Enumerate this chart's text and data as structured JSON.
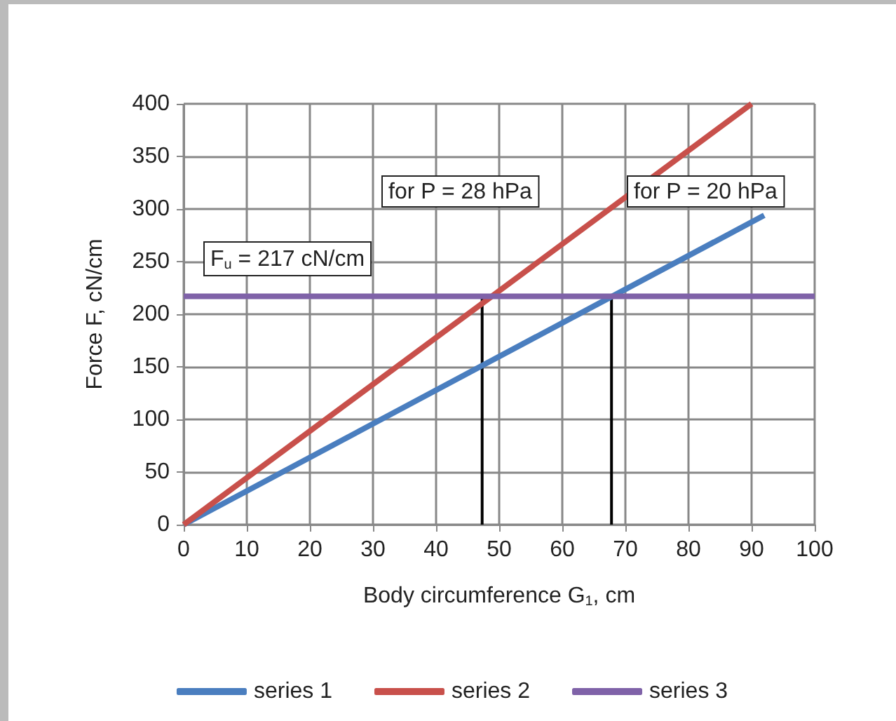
{
  "chart_data": {
    "type": "line",
    "xlabel": "Body circumference G$_{1}$, cm",
    "ylabel": "Force F, cN/cm",
    "xlim": [
      0,
      100
    ],
    "xticks": [
      0,
      10,
      20,
      30,
      40,
      50,
      60,
      70,
      80,
      90,
      100
    ],
    "ylim": [
      0,
      400
    ],
    "yticks": [
      0,
      50,
      100,
      150,
      200,
      250,
      300,
      350,
      400
    ],
    "series": [
      {
        "name": "series 1",
        "color": "#4a7ebf",
        "x": [
          0,
          92
        ],
        "values": [
          0,
          294
        ]
      },
      {
        "name": "series 2",
        "color": "#c8504b",
        "x": [
          0,
          90
        ],
        "values": [
          0,
          400
        ]
      },
      {
        "name": "series 3",
        "color": "#7f62a8",
        "x": [
          0,
          100
        ],
        "values": [
          217,
          217
        ]
      },
      {
        "color": "#000000",
        "x": [
          47.3,
          47.3
        ],
        "values": [
          0,
          217
        ]
      },
      {
        "color": "#000000",
        "x": [
          67.8,
          67.8
        ],
        "values": [
          0,
          217
        ]
      }
    ],
    "annotations": [
      "for P = 28 hPa",
      "for P = 20 hPa",
      "F$_{u}$ = 217 cN/cm"
    ],
    "grid": true,
    "legend": "bottom",
    "marker": "none",
    "line_style": "solid"
  }
}
